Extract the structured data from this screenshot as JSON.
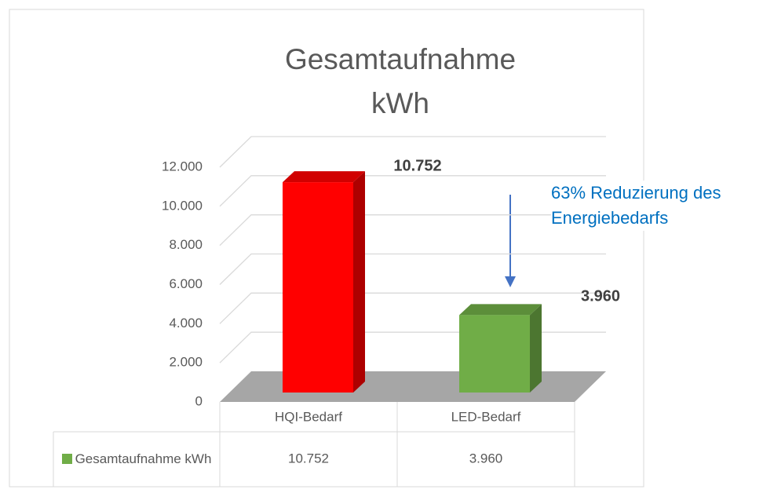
{
  "chart_data": {
    "type": "bar3d",
    "title": "Gesamtaufnahme kWh",
    "categories": [
      "HQI-Bedarf",
      "LED-Bedarf"
    ],
    "series": [
      {
        "name": "Gesamtaufnahme kWh",
        "color": "#70ad47",
        "colors": [
          "#ff0000",
          "#70ad47"
        ],
        "values": [
          10752,
          3960
        ],
        "value_labels": [
          "10.752",
          "3.960"
        ]
      }
    ],
    "ylim": [
      0,
      12000
    ],
    "yticks": [
      0,
      {
        "value": 2000,
        "label": "2.000"
      },
      {
        "value": 4000,
        "label": "4.000"
      },
      {
        "value": 6000,
        "label": "6.000"
      },
      {
        "value": 8000,
        "label": "8.000"
      },
      {
        "value": 10000,
        "label": "10.000"
      },
      {
        "value": 12000,
        "label": "12.000"
      }
    ],
    "grid": true,
    "annotation": "63% Reduzierung des Energiebedarfs"
  }
}
